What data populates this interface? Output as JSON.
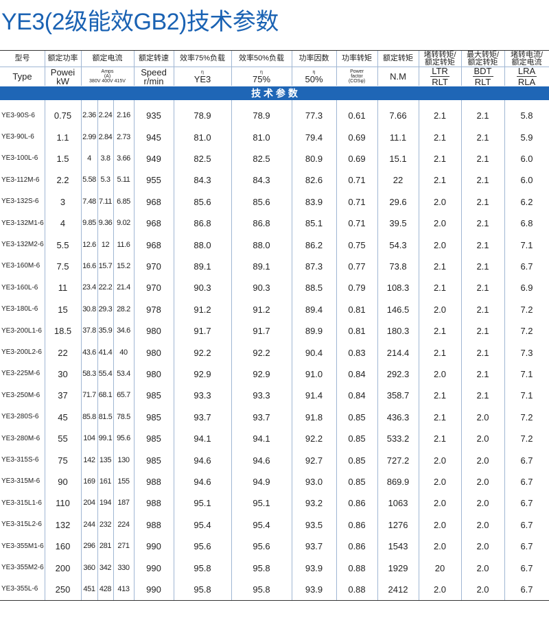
{
  "title": "YE3(2级能效GB2)技术参数",
  "table": {
    "header": [
      "型号",
      "额定功率",
      "额定电流",
      "额定转速",
      "效率75%负载",
      "效率50%负载",
      "功率因数",
      "功率转矩",
      "额定转矩",
      [
        "堵转转矩/",
        "额定转矩"
      ],
      [
        "最大转矩/",
        "额定转矩"
      ],
      [
        "堵转电流/",
        "额定电流"
      ]
    ],
    "units": [
      [
        "Type"
      ],
      [
        "Powei",
        "kW"
      ],
      [
        "Amps",
        "(A)",
        "380V 400V 415V"
      ],
      [
        "Speed",
        "r/min"
      ],
      [
        "η",
        "YE3"
      ],
      [
        "η",
        "75%"
      ],
      [
        "η",
        "50%"
      ],
      [
        "Power",
        "factor",
        "(COSφ)"
      ],
      [
        "N.M"
      ],
      [
        "LTR",
        "RLT"
      ],
      [
        "BDT",
        "RLT"
      ],
      [
        "LRA",
        "RLA"
      ]
    ],
    "section": "技 术 参 数",
    "rows": [
      [
        "YE3-90S-6",
        "0.75",
        "2.36",
        "2.24",
        "2.16",
        "935",
        "78.9",
        "78.9",
        "77.3",
        "0.61",
        "7.66",
        "2.1",
        "2.1",
        "5.8"
      ],
      [
        "YE3-90L-6",
        "1.1",
        "2.99",
        "2.84",
        "2.73",
        "945",
        "81.0",
        "81.0",
        "79.4",
        "0.69",
        "11.1",
        "2.1",
        "2.1",
        "5.9"
      ],
      [
        "YE3-100L-6",
        "1.5",
        "4",
        "3.8",
        "3.66",
        "949",
        "82.5",
        "82.5",
        "80.9",
        "0.69",
        "15.1",
        "2.1",
        "2.1",
        "6.0"
      ],
      [
        "YE3-112M-6",
        "2.2",
        "5.58",
        "5.3",
        "5.11",
        "955",
        "84.3",
        "84.3",
        "82.6",
        "0.71",
        "22",
        "2.1",
        "2.1",
        "6.0"
      ],
      [
        "YE3-132S-6",
        "3",
        "7.48",
        "7.11",
        "6.85",
        "968",
        "85.6",
        "85.6",
        "83.9",
        "0.71",
        "29.6",
        "2.0",
        "2.1",
        "6.2"
      ],
      [
        "YE3-132M1-6",
        "4",
        "9.85",
        "9.36",
        "9.02",
        "968",
        "86.8",
        "86.8",
        "85.1",
        "0.71",
        "39.5",
        "2.0",
        "2.1",
        "6.8"
      ],
      [
        "YE3-132M2-6",
        "5.5",
        "12.6",
        "12",
        "11.6",
        "968",
        "88.0",
        "88.0",
        "86.2",
        "0.75",
        "54.3",
        "2.0",
        "2.1",
        "7.1"
      ],
      [
        "YE3-160M-6",
        "7.5",
        "16.6",
        "15.7",
        "15.2",
        "970",
        "89.1",
        "89.1",
        "87.3",
        "0.77",
        "73.8",
        "2.1",
        "2.1",
        "6.7"
      ],
      [
        "YE3-160L-6",
        "11",
        "23.4",
        "22.2",
        "21.4",
        "970",
        "90.3",
        "90.3",
        "88.5",
        "0.79",
        "108.3",
        "2.1",
        "2.1",
        "6.9"
      ],
      [
        "YE3-180L-6",
        "15",
        "30.8",
        "29.3",
        "28.2",
        "978",
        "91.2",
        "91.2",
        "89.4",
        "0.81",
        "146.5",
        "2.0",
        "2.1",
        "7.2"
      ],
      [
        "YE3-200L1-6",
        "18.5",
        "37.8",
        "35.9",
        "34.6",
        "980",
        "91.7",
        "91.7",
        "89.9",
        "0.81",
        "180.3",
        "2.1",
        "2.1",
        "7.2"
      ],
      [
        "YE3-200L2-6",
        "22",
        "43.6",
        "41.4",
        "40",
        "980",
        "92.2",
        "92.2",
        "90.4",
        "0.83",
        "214.4",
        "2.1",
        "2.1",
        "7.3"
      ],
      [
        "YE3-225M-6",
        "30",
        "58.3",
        "55.4",
        "53.4",
        "980",
        "92.9",
        "92.9",
        "91.0",
        "0.84",
        "292.3",
        "2.0",
        "2.1",
        "7.1"
      ],
      [
        "YE3-250M-6",
        "37",
        "71.7",
        "68.1",
        "65.7",
        "985",
        "93.3",
        "93.3",
        "91.4",
        "0.84",
        "358.7",
        "2.1",
        "2.1",
        "7.1"
      ],
      [
        "YE3-280S-6",
        "45",
        "85.8",
        "81.5",
        "78.5",
        "985",
        "93.7",
        "93.7",
        "91.8",
        "0.85",
        "436.3",
        "2.1",
        "2.0",
        "7.2"
      ],
      [
        "YE3-280M-6",
        "55",
        "104",
        "99.1",
        "95.6",
        "985",
        "94.1",
        "94.1",
        "92.2",
        "0.85",
        "533.2",
        "2.1",
        "2.0",
        "7.2"
      ],
      [
        "YE3-315S-6",
        "75",
        "142",
        "135",
        "130",
        "985",
        "94.6",
        "94.6",
        "92.7",
        "0.85",
        "727.2",
        "2.0",
        "2.0",
        "6.7"
      ],
      [
        "YE3-315M-6",
        "90",
        "169",
        "161",
        "155",
        "988",
        "94.6",
        "94.9",
        "93.0",
        "0.85",
        "869.9",
        "2.0",
        "2.0",
        "6.7"
      ],
      [
        "YE3-315L1-6",
        "110",
        "204",
        "194",
        "187",
        "988",
        "95.1",
        "95.1",
        "93.2",
        "0.86",
        "1063",
        "2.0",
        "2.0",
        "6.7"
      ],
      [
        "YE3-315L2-6",
        "132",
        "244",
        "232",
        "224",
        "988",
        "95.4",
        "95.4",
        "93.5",
        "0.86",
        "1276",
        "2.0",
        "2.0",
        "6.7"
      ],
      [
        "YE3-355M1-6",
        "160",
        "296",
        "281",
        "271",
        "990",
        "95.6",
        "95.6",
        "93.7",
        "0.86",
        "1543",
        "2.0",
        "2.0",
        "6.7"
      ],
      [
        "YE3-355M2-6",
        "200",
        "360",
        "342",
        "330",
        "990",
        "95.8",
        "95.8",
        "93.9",
        "0.88",
        "1929",
        "20",
        "2.0",
        "6.7"
      ],
      [
        "YE3-355L-6",
        "250",
        "451",
        "428",
        "413",
        "990",
        "95.8",
        "95.8",
        "93.9",
        "0.88",
        "2412",
        "2.0",
        "2.0",
        "6.7"
      ]
    ]
  }
}
